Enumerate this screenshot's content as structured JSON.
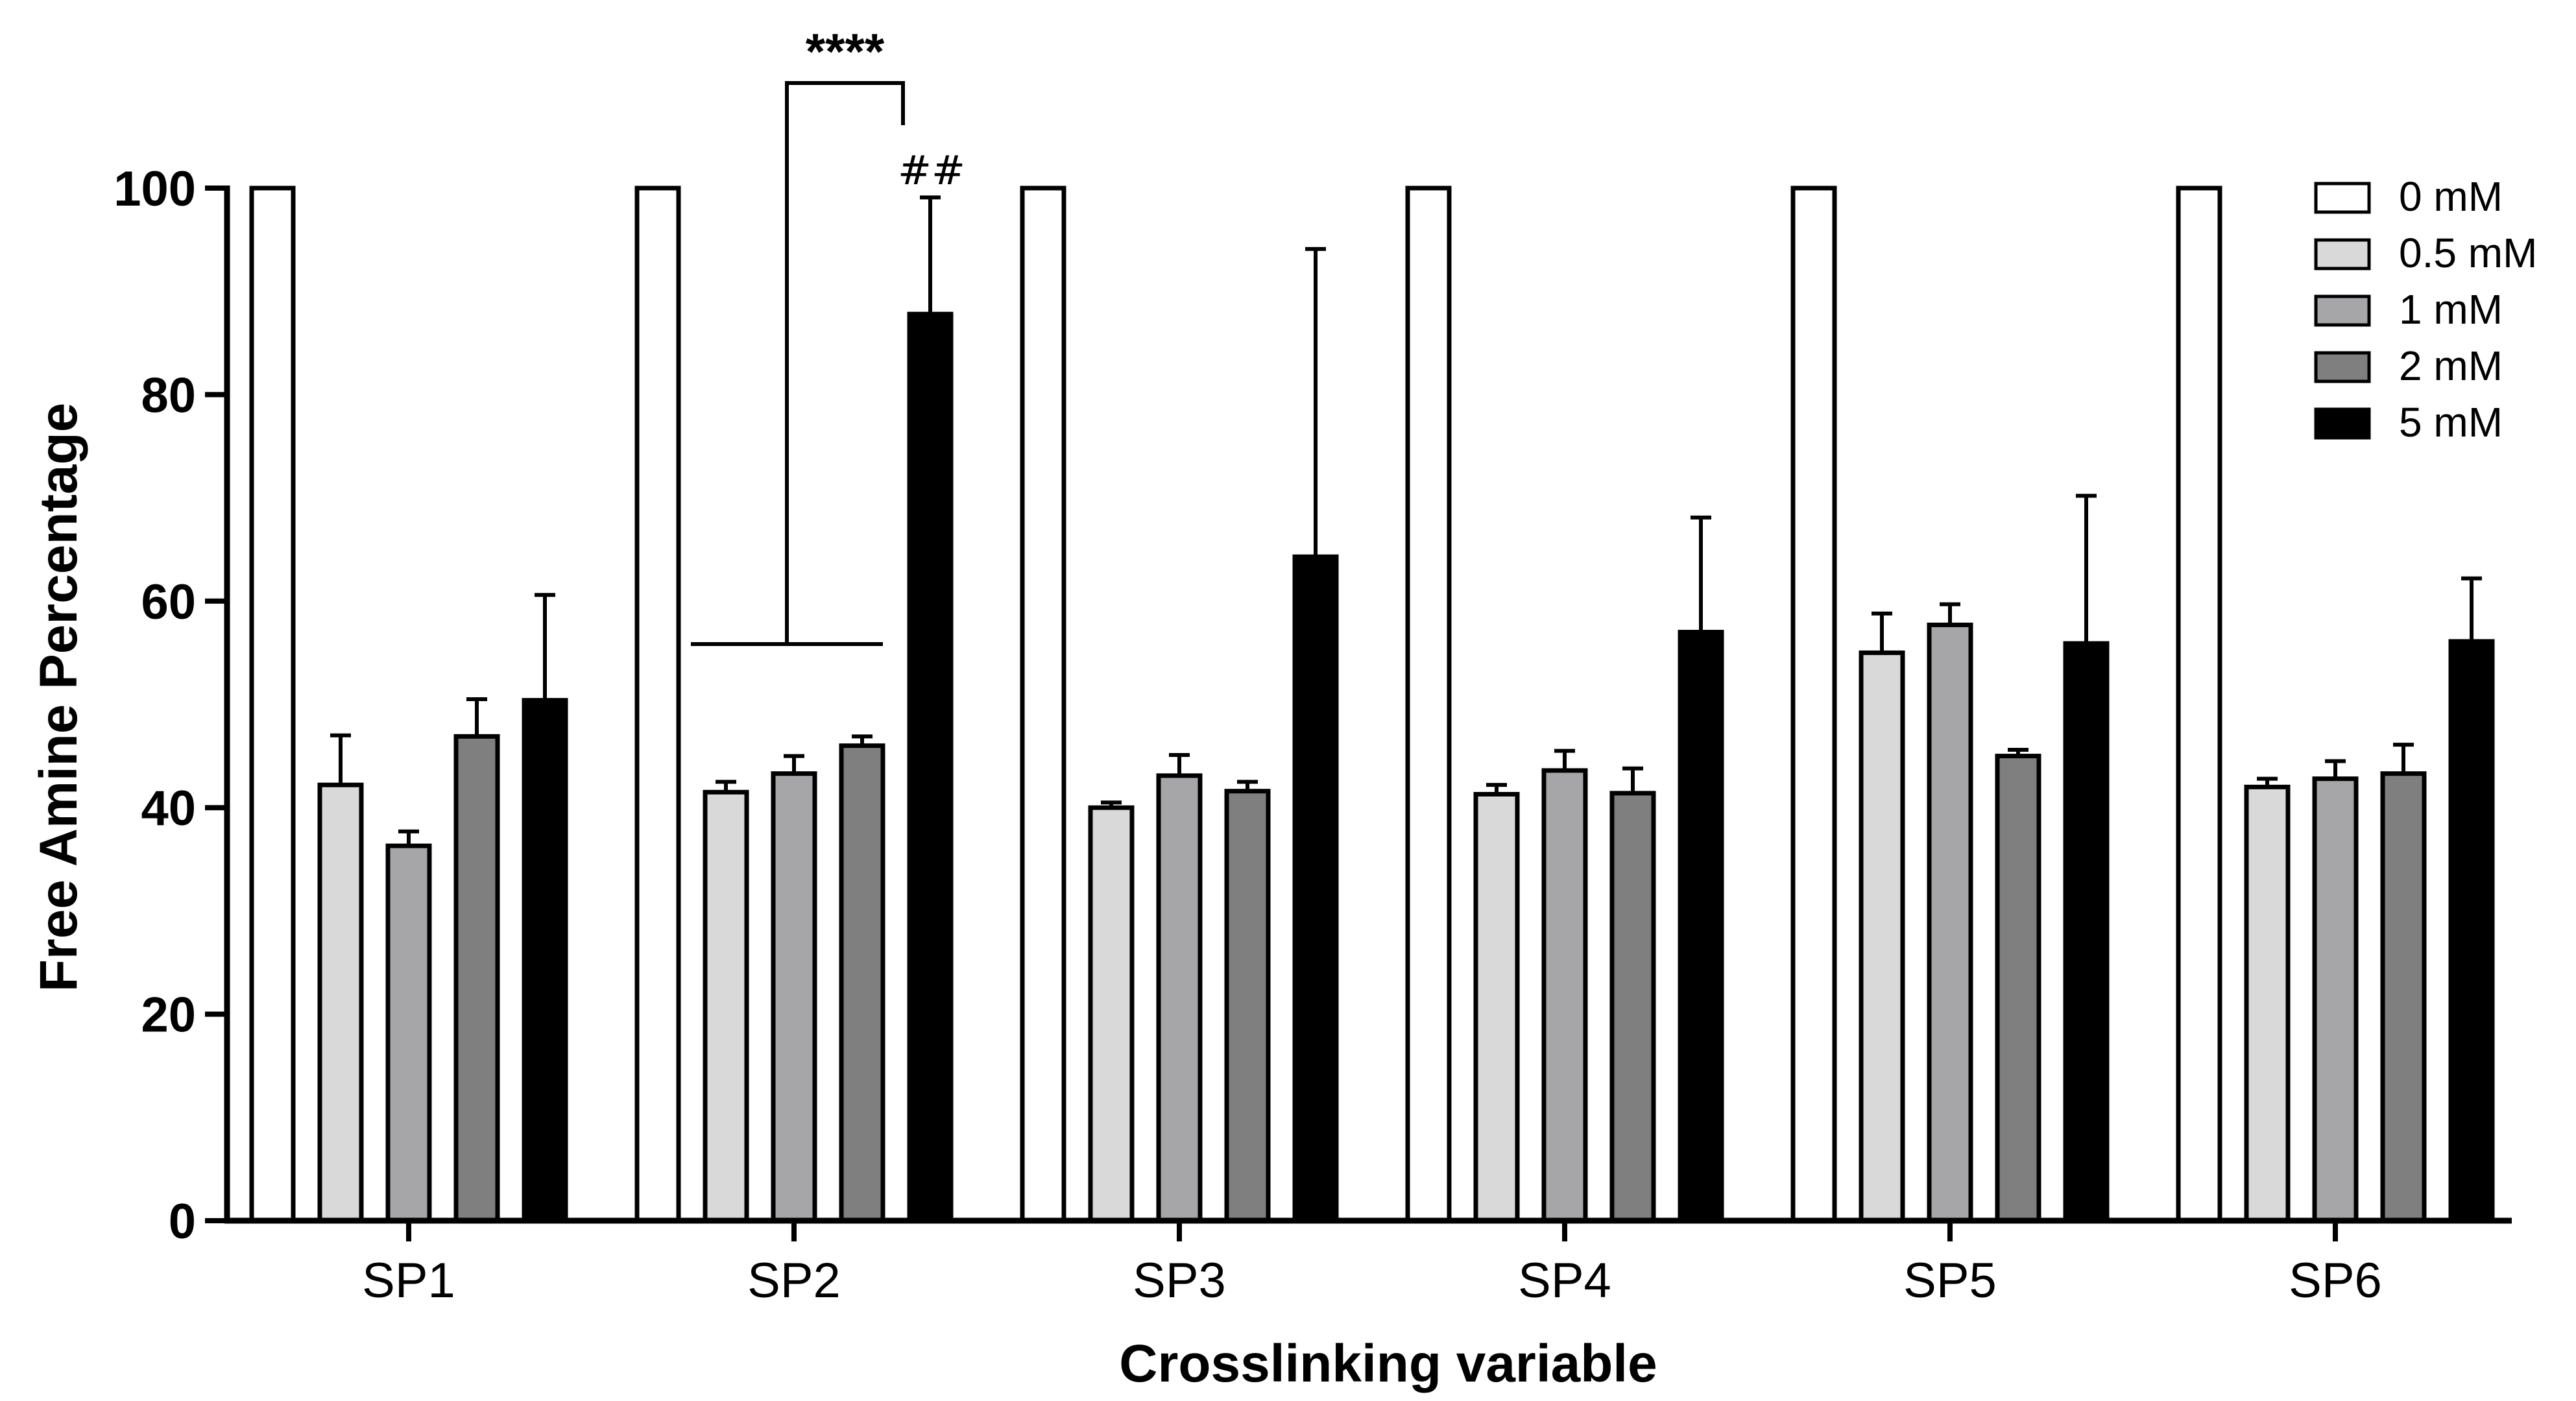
{
  "chart_data": {
    "type": "bar",
    "title": "",
    "xlabel": "Crosslinking variable",
    "ylabel": "Free Amine Percentage",
    "ylim": [
      0,
      100
    ],
    "yticks": [
      "0",
      "20",
      "40",
      "60",
      "80",
      "100"
    ],
    "ytick_values": [
      0,
      20,
      40,
      60,
      80,
      100
    ],
    "grid": false,
    "legend_position": "top-right",
    "categories": [
      "SP1",
      "SP2",
      "SP3",
      "SP4",
      "SP5",
      "SP6"
    ],
    "series": [
      {
        "name": "0 mM",
        "color": "#ffffff",
        "values": [
          100,
          100,
          100,
          100,
          100,
          100
        ],
        "errors": [
          0,
          0,
          0,
          0,
          0,
          0
        ]
      },
      {
        "name": "0.5 mM",
        "color": "#d9d9d9",
        "values": [
          42.2,
          41.5,
          40.0,
          41.3,
          55.0,
          42.0
        ],
        "errors": [
          4.8,
          1.0,
          0.5,
          0.9,
          3.8,
          0.8
        ]
      },
      {
        "name": "1 mM",
        "color": "#a6a6a8",
        "values": [
          36.3,
          43.3,
          43.1,
          43.6,
          57.7,
          42.8
        ],
        "errors": [
          1.4,
          1.7,
          2.0,
          1.9,
          2.0,
          1.7
        ]
      },
      {
        "name": "2 mM",
        "color": "#7f7f7f",
        "values": [
          46.9,
          46.0,
          41.6,
          41.4,
          45.0,
          43.3
        ],
        "errors": [
          3.6,
          0.9,
          0.9,
          2.4,
          0.6,
          2.8
        ]
      },
      {
        "name": "5 mM",
        "color": "#000000",
        "values": [
          50.4,
          87.8,
          64.3,
          57.0,
          55.9,
          56.1
        ],
        "errors": [
          10.2,
          11.3,
          29.8,
          11.1,
          14.3,
          6.1
        ]
      }
    ],
    "annotations": {
      "significance": "****",
      "hash_marks": "##"
    }
  }
}
